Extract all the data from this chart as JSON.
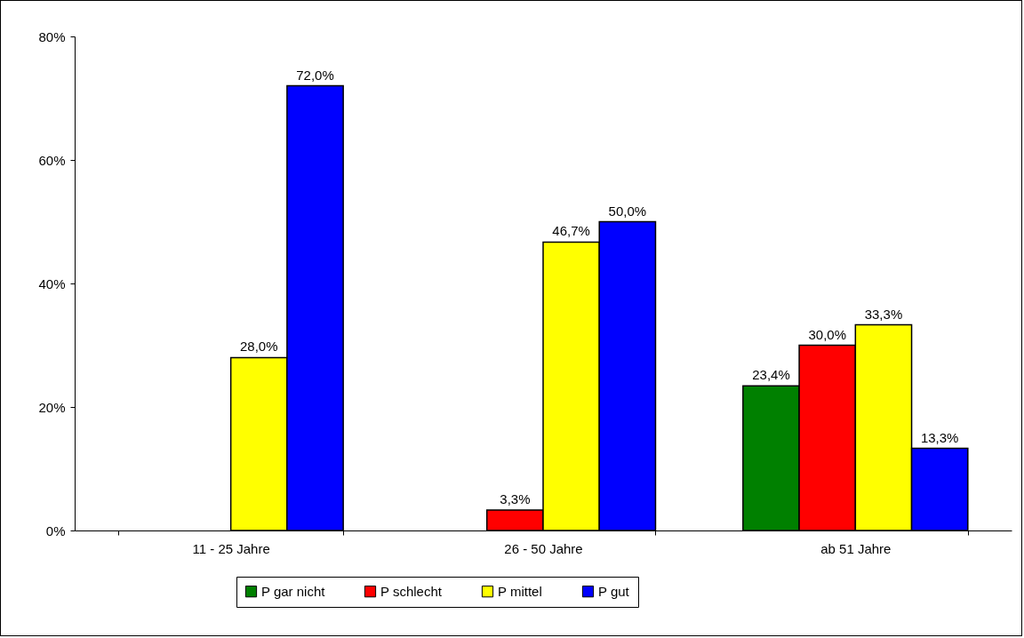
{
  "chart_data": {
    "type": "bar",
    "categories": [
      "11 - 25 Jahre",
      "26 - 50 Jahre",
      "ab 51 Jahre"
    ],
    "series": [
      {
        "name": "P gar nicht",
        "color": "#008000",
        "values": [
          null,
          null,
          23.4
        ],
        "value_labels": [
          null,
          null,
          "23,4%"
        ]
      },
      {
        "name": "P schlecht",
        "color": "#ff0000",
        "values": [
          null,
          3.3,
          30.0
        ],
        "value_labels": [
          null,
          "3,3%",
          "30,0%"
        ]
      },
      {
        "name": "P mittel",
        "color": "#ffff00",
        "values": [
          28.0,
          46.7,
          33.3
        ],
        "value_labels": [
          "28,0%",
          "46,7%",
          "33,3%"
        ]
      },
      {
        "name": "P gut",
        "color": "#0000ff",
        "values": [
          72.0,
          50.0,
          13.3
        ],
        "value_labels": [
          "72,0%",
          "50,0%",
          "13,3%"
        ]
      }
    ],
    "ylim": [
      0,
      80
    ],
    "yticks": [
      {
        "value": 0,
        "label": "0%"
      },
      {
        "value": 20,
        "label": "20%"
      },
      {
        "value": 40,
        "label": "40%"
      },
      {
        "value": 60,
        "label": "60%"
      },
      {
        "value": 80,
        "label": "80%"
      }
    ],
    "grid": false,
    "legend": "bottom"
  }
}
